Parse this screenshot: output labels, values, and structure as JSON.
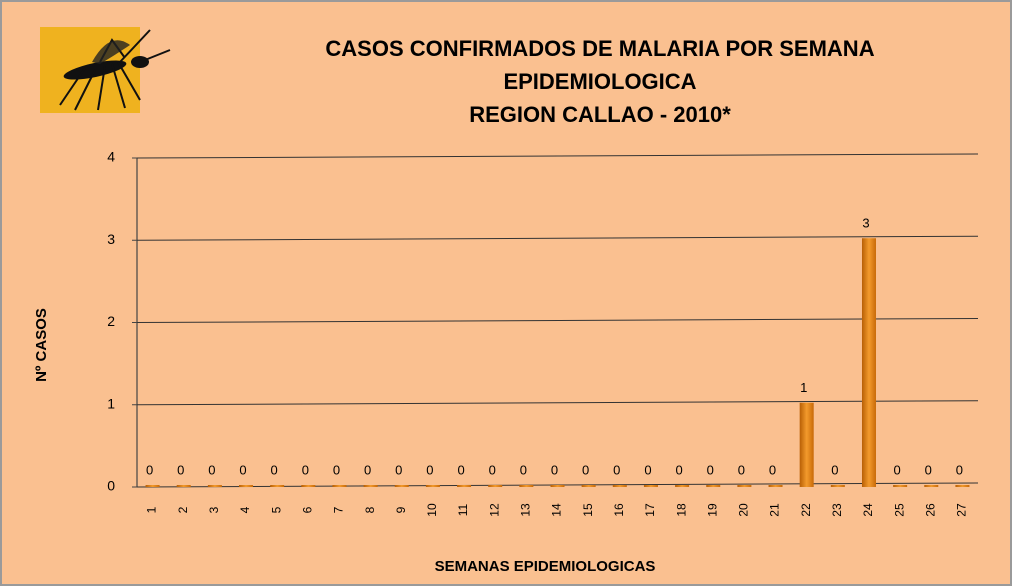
{
  "chart_data": {
    "type": "bar",
    "title": [
      "CASOS CONFIRMADOS DE MALARIA POR SEMANA",
      "EPIDEMIOLOGICA",
      "REGION CALLAO - 2010*"
    ],
    "x_label": "SEMANAS EPIDEMIOLOGICAS",
    "y_label": "Nº CASOS",
    "categories": [
      "1",
      "2",
      "3",
      "4",
      "5",
      "6",
      "7",
      "8",
      "9",
      "10",
      "11",
      "12",
      "13",
      "14",
      "15",
      "16",
      "17",
      "18",
      "19",
      "20",
      "21",
      "22",
      "23",
      "24",
      "25",
      "26",
      "27"
    ],
    "values": [
      0,
      0,
      0,
      0,
      0,
      0,
      0,
      0,
      0,
      0,
      0,
      0,
      0,
      0,
      0,
      0,
      0,
      0,
      0,
      0,
      0,
      1,
      0,
      3,
      0,
      0,
      0
    ],
    "color": "#e8820e",
    "ylim": [
      0,
      4
    ],
    "yticks": [
      0,
      1,
      2,
      3,
      4
    ],
    "grid": true
  }
}
